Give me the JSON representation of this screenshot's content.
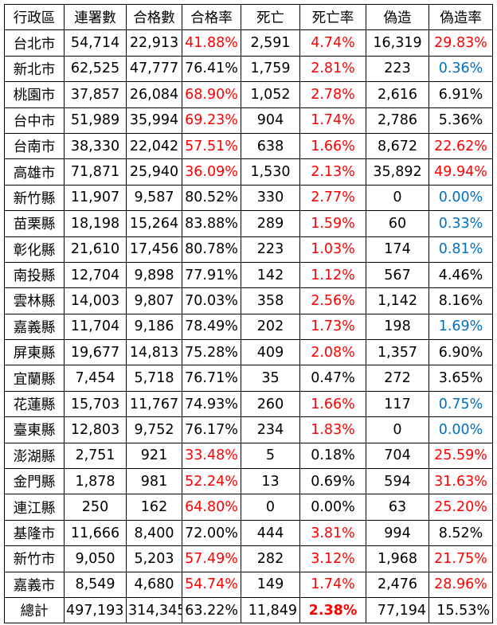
{
  "colors": {
    "red": "#ff0000",
    "blue": "#0070c0",
    "black": "#000000"
  },
  "headers": [
    "行政區",
    "連署數",
    "合格數",
    "合格率",
    "死亡",
    "死亡率",
    "偽造",
    "偽造率"
  ],
  "rows": [
    {
      "district": "台北市",
      "signatures": "54,714",
      "qualified": "22,913",
      "qualified_rate": "41.88%",
      "qualified_rate_color": "red",
      "deaths": "2,591",
      "death_rate": "4.74%",
      "death_rate_color": "red",
      "forged": "16,319",
      "forged_rate": "29.83%",
      "forged_rate_color": "red"
    },
    {
      "district": "新北市",
      "signatures": "62,525",
      "qualified": "47,777",
      "qualified_rate": "76.41%",
      "qualified_rate_color": "black",
      "deaths": "1,759",
      "death_rate": "2.81%",
      "death_rate_color": "red",
      "forged": "223",
      "forged_rate": "0.36%",
      "forged_rate_color": "blue"
    },
    {
      "district": "桃園市",
      "signatures": "37,857",
      "qualified": "26,084",
      "qualified_rate": "68.90%",
      "qualified_rate_color": "red",
      "deaths": "1,052",
      "death_rate": "2.78%",
      "death_rate_color": "red",
      "forged": "2,616",
      "forged_rate": "6.91%",
      "forged_rate_color": "black"
    },
    {
      "district": "台中市",
      "signatures": "51,989",
      "qualified": "35,994",
      "qualified_rate": "69.23%",
      "qualified_rate_color": "red",
      "deaths": "904",
      "death_rate": "1.74%",
      "death_rate_color": "red",
      "forged": "2,786",
      "forged_rate": "5.36%",
      "forged_rate_color": "black"
    },
    {
      "district": "台南市",
      "signatures": "38,330",
      "qualified": "22,042",
      "qualified_rate": "57.51%",
      "qualified_rate_color": "red",
      "deaths": "638",
      "death_rate": "1.66%",
      "death_rate_color": "red",
      "forged": "8,672",
      "forged_rate": "22.62%",
      "forged_rate_color": "red"
    },
    {
      "district": "高雄市",
      "signatures": "71,871",
      "qualified": "25,940",
      "qualified_rate": "36.09%",
      "qualified_rate_color": "red",
      "deaths": "1,530",
      "death_rate": "2.13%",
      "death_rate_color": "red",
      "forged": "35,892",
      "forged_rate": "49.94%",
      "forged_rate_color": "red"
    },
    {
      "district": "新竹縣",
      "signatures": "11,907",
      "qualified": "9,587",
      "qualified_rate": "80.52%",
      "qualified_rate_color": "black",
      "deaths": "330",
      "death_rate": "2.77%",
      "death_rate_color": "red",
      "forged": "0",
      "forged_rate": "0.00%",
      "forged_rate_color": "blue"
    },
    {
      "district": "苗栗縣",
      "signatures": "18,198",
      "qualified": "15,264",
      "qualified_rate": "83.88%",
      "qualified_rate_color": "black",
      "deaths": "289",
      "death_rate": "1.59%",
      "death_rate_color": "red",
      "forged": "60",
      "forged_rate": "0.33%",
      "forged_rate_color": "blue"
    },
    {
      "district": "彰化縣",
      "signatures": "21,610",
      "qualified": "17,456",
      "qualified_rate": "80.78%",
      "qualified_rate_color": "black",
      "deaths": "223",
      "death_rate": "1.03%",
      "death_rate_color": "red",
      "forged": "174",
      "forged_rate": "0.81%",
      "forged_rate_color": "blue"
    },
    {
      "district": "南投縣",
      "signatures": "12,704",
      "qualified": "9,898",
      "qualified_rate": "77.91%",
      "qualified_rate_color": "black",
      "deaths": "142",
      "death_rate": "1.12%",
      "death_rate_color": "red",
      "forged": "567",
      "forged_rate": "4.46%",
      "forged_rate_color": "black"
    },
    {
      "district": "雲林縣",
      "signatures": "14,003",
      "qualified": "9,807",
      "qualified_rate": "70.03%",
      "qualified_rate_color": "black",
      "deaths": "358",
      "death_rate": "2.56%",
      "death_rate_color": "red",
      "forged": "1,142",
      "forged_rate": "8.16%",
      "forged_rate_color": "black"
    },
    {
      "district": "嘉義縣",
      "signatures": "11,704",
      "qualified": "9,186",
      "qualified_rate": "78.49%",
      "qualified_rate_color": "black",
      "deaths": "202",
      "death_rate": "1.73%",
      "death_rate_color": "red",
      "forged": "198",
      "forged_rate": "1.69%",
      "forged_rate_color": "blue"
    },
    {
      "district": "屏東縣",
      "signatures": "19,677",
      "qualified": "14,813",
      "qualified_rate": "75.28%",
      "qualified_rate_color": "black",
      "deaths": "409",
      "death_rate": "2.08%",
      "death_rate_color": "red",
      "forged": "1,357",
      "forged_rate": "6.90%",
      "forged_rate_color": "black"
    },
    {
      "district": "宜蘭縣",
      "signatures": "7,454",
      "qualified": "5,718",
      "qualified_rate": "76.71%",
      "qualified_rate_color": "black",
      "deaths": "35",
      "death_rate": "0.47%",
      "death_rate_color": "black",
      "forged": "272",
      "forged_rate": "3.65%",
      "forged_rate_color": "black"
    },
    {
      "district": "花蓮縣",
      "signatures": "15,703",
      "qualified": "11,767",
      "qualified_rate": "74.93%",
      "qualified_rate_color": "black",
      "deaths": "260",
      "death_rate": "1.66%",
      "death_rate_color": "red",
      "forged": "117",
      "forged_rate": "0.75%",
      "forged_rate_color": "blue"
    },
    {
      "district": "臺東縣",
      "signatures": "12,803",
      "qualified": "9,752",
      "qualified_rate": "76.17%",
      "qualified_rate_color": "black",
      "deaths": "234",
      "death_rate": "1.83%",
      "death_rate_color": "red",
      "forged": "0",
      "forged_rate": "0.00%",
      "forged_rate_color": "blue"
    },
    {
      "district": "澎湖縣",
      "signatures": "2,751",
      "qualified": "921",
      "qualified_rate": "33.48%",
      "qualified_rate_color": "red",
      "deaths": "5",
      "death_rate": "0.18%",
      "death_rate_color": "black",
      "forged": "704",
      "forged_rate": "25.59%",
      "forged_rate_color": "red"
    },
    {
      "district": "金門縣",
      "signatures": "1,878",
      "qualified": "981",
      "qualified_rate": "52.24%",
      "qualified_rate_color": "red",
      "deaths": "13",
      "death_rate": "0.69%",
      "death_rate_color": "black",
      "forged": "594",
      "forged_rate": "31.63%",
      "forged_rate_color": "red"
    },
    {
      "district": "連江縣",
      "signatures": "250",
      "qualified": "162",
      "qualified_rate": "64.80%",
      "qualified_rate_color": "red",
      "deaths": "0",
      "death_rate": "0.00%",
      "death_rate_color": "black",
      "forged": "63",
      "forged_rate": "25.20%",
      "forged_rate_color": "red"
    },
    {
      "district": "基隆市",
      "signatures": "11,666",
      "qualified": "8,400",
      "qualified_rate": "72.00%",
      "qualified_rate_color": "black",
      "deaths": "444",
      "death_rate": "3.81%",
      "death_rate_color": "red",
      "forged": "994",
      "forged_rate": "8.52%",
      "forged_rate_color": "black"
    },
    {
      "district": "新竹市",
      "signatures": "9,050",
      "qualified": "5,203",
      "qualified_rate": "57.49%",
      "qualified_rate_color": "red",
      "deaths": "282",
      "death_rate": "3.12%",
      "death_rate_color": "red",
      "forged": "1,968",
      "forged_rate": "21.75%",
      "forged_rate_color": "red"
    },
    {
      "district": "嘉義市",
      "signatures": "8,549",
      "qualified": "4,680",
      "qualified_rate": "54.74%",
      "qualified_rate_color": "red",
      "deaths": "149",
      "death_rate": "1.74%",
      "death_rate_color": "red",
      "forged": "2,476",
      "forged_rate": "28.96%",
      "forged_rate_color": "red"
    }
  ],
  "total": {
    "district": "總計",
    "signatures": "497,193",
    "qualified": "314,345",
    "qualified_rate": "63.22%",
    "deaths": "11,849",
    "death_rate": "2.38%",
    "death_rate_color": "red",
    "death_rate_bold": true,
    "forged": "77,194",
    "forged_rate": "15.53%"
  }
}
